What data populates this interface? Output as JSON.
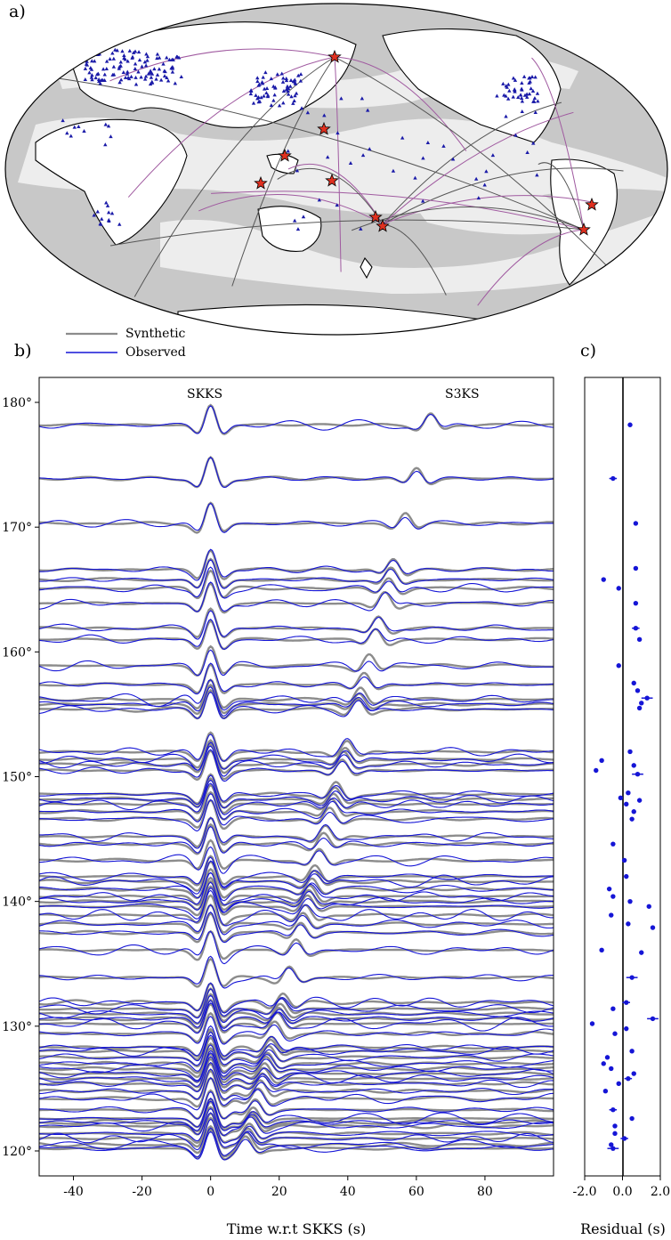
{
  "panels": {
    "a": "a)",
    "b": "b)",
    "c": "c)"
  },
  "legend": {
    "synthetic": "Synthetic",
    "observed": "Observed"
  },
  "colors": {
    "synthetic": "#8c8c8c",
    "observed": "#1515d6",
    "ray_synthetic": "#555555",
    "ray_observed": "#a05aa0",
    "event_star": "#e03020",
    "station": "#1a1aa8",
    "map_ocean_dark": "#c8c8c8",
    "map_ocean_light": "#ededed"
  },
  "map": {
    "description_icon": "globe-map-icon"
  },
  "chart_data": [
    {
      "type": "line",
      "name": "waveforms",
      "phase_labels": [
        "SKKS",
        "S3KS"
      ],
      "xlabel": "Time w.r.t SKKS (s)",
      "xlim": [
        -50,
        100
      ],
      "ylim": [
        118,
        182
      ],
      "xticks": [
        -40,
        -20,
        0,
        20,
        40,
        60,
        80
      ],
      "xtick_labels": [
        "-40",
        "-20",
        "0",
        "20",
        "40",
        "60",
        "80"
      ],
      "yticks": [
        120,
        130,
        140,
        150,
        160,
        170,
        180
      ],
      "ytick_labels": [
        "120°",
        "130°",
        "140°",
        "150°",
        "160°",
        "170°",
        "180°"
      ],
      "distances": [
        120.2,
        120.5,
        121.0,
        121.4,
        122.0,
        122.3,
        122.6,
        123.3,
        124.2,
        124.8,
        125.4,
        125.8,
        126.2,
        126.6,
        127.0,
        127.5,
        128.0,
        128.3,
        129.4,
        130.2,
        130.6,
        131.0,
        131.4,
        131.9,
        133.9,
        136.1,
        137.5,
        138.2,
        138.9,
        139.6,
        140.0,
        140.4,
        141.0,
        141.6,
        142.0,
        143.3,
        144.6,
        145.2,
        146.6,
        147.2,
        147.8,
        148.2,
        148.6,
        150.5,
        151.0,
        151.4,
        152.0,
        155.4,
        155.8,
        156.2,
        157.4,
        158.9,
        161.0,
        161.9,
        163.9,
        165.1,
        165.8,
        166.6,
        170.3,
        173.9,
        178.2
      ],
      "series": [
        {
          "name": "Synthetic",
          "color": "#8c8c8c"
        },
        {
          "name": "Observed",
          "color": "#1515d6"
        }
      ]
    },
    {
      "type": "scatter",
      "name": "residuals",
      "xlabel": "Residual (s)",
      "xlim": [
        -2.0,
        2.0
      ],
      "xticks": [
        -2.0,
        0.0,
        2.0
      ],
      "xtick_labels": [
        "-2.0",
        "0.0",
        "2.0"
      ],
      "points": [
        {
          "y": 178.2,
          "x": 0.4,
          "e": 0
        },
        {
          "y": 173.9,
          "x": -0.5,
          "e": 0.2
        },
        {
          "y": 170.3,
          "x": 0.7,
          "e": 0
        },
        {
          "y": 166.7,
          "x": 0.7,
          "e": 0.1
        },
        {
          "y": 165.8,
          "x": -1.0,
          "e": 0.1
        },
        {
          "y": 165.1,
          "x": -0.2,
          "e": 0
        },
        {
          "y": 163.9,
          "x": 0.7,
          "e": 0
        },
        {
          "y": 161.9,
          "x": 0.7,
          "e": 0.2
        },
        {
          "y": 161.0,
          "x": 0.9,
          "e": 0
        },
        {
          "y": 158.9,
          "x": -0.2,
          "e": 0
        },
        {
          "y": 157.5,
          "x": 0.6,
          "e": 0
        },
        {
          "y": 156.9,
          "x": 0.8,
          "e": 0
        },
        {
          "y": 156.3,
          "x": 1.3,
          "e": 0.3
        },
        {
          "y": 155.9,
          "x": 1.0,
          "e": 0.1
        },
        {
          "y": 155.5,
          "x": 0.9,
          "e": 0
        },
        {
          "y": 152.0,
          "x": 0.4,
          "e": 0
        },
        {
          "y": 151.3,
          "x": -1.1,
          "e": 0
        },
        {
          "y": 150.9,
          "x": 0.6,
          "e": 0
        },
        {
          "y": 150.5,
          "x": -1.4,
          "e": 0
        },
        {
          "y": 150.2,
          "x": 0.8,
          "e": 0.3
        },
        {
          "y": 148.7,
          "x": 0.3,
          "e": 0
        },
        {
          "y": 148.3,
          "x": -0.1,
          "e": 0.1
        },
        {
          "y": 148.1,
          "x": 0.9,
          "e": 0
        },
        {
          "y": 147.8,
          "x": 0.2,
          "e": 0
        },
        {
          "y": 147.2,
          "x": 0.6,
          "e": 0
        },
        {
          "y": 146.6,
          "x": 0.5,
          "e": 0
        },
        {
          "y": 144.6,
          "x": -0.5,
          "e": 0
        },
        {
          "y": 143.3,
          "x": 0.1,
          "e": 0
        },
        {
          "y": 142.0,
          "x": 0.2,
          "e": 0
        },
        {
          "y": 141.0,
          "x": -0.7,
          "e": 0.1
        },
        {
          "y": 140.4,
          "x": -0.5,
          "e": 0
        },
        {
          "y": 140.0,
          "x": 0.4,
          "e": 0.1
        },
        {
          "y": 139.6,
          "x": 1.4,
          "e": 0
        },
        {
          "y": 138.9,
          "x": -0.6,
          "e": 0
        },
        {
          "y": 138.2,
          "x": 0.3,
          "e": 0
        },
        {
          "y": 137.9,
          "x": 1.6,
          "e": 0.1
        },
        {
          "y": 136.1,
          "x": -1.1,
          "e": 0
        },
        {
          "y": 135.9,
          "x": 1.0,
          "e": 0
        },
        {
          "y": 133.9,
          "x": 0.5,
          "e": 0.3
        },
        {
          "y": 131.9,
          "x": 0.2,
          "e": 0.2
        },
        {
          "y": 131.4,
          "x": -0.5,
          "e": 0
        },
        {
          "y": 130.6,
          "x": 1.6,
          "e": 0.3
        },
        {
          "y": 130.2,
          "x": -1.6,
          "e": 0.1
        },
        {
          "y": 129.8,
          "x": 0.2,
          "e": 0
        },
        {
          "y": 129.4,
          "x": -0.4,
          "e": 0
        },
        {
          "y": 128.0,
          "x": 0.5,
          "e": 0
        },
        {
          "y": 127.5,
          "x": -0.8,
          "e": 0
        },
        {
          "y": 127.0,
          "x": -1.0,
          "e": 0.1
        },
        {
          "y": 126.6,
          "x": -0.6,
          "e": 0
        },
        {
          "y": 126.2,
          "x": 0.6,
          "e": 0
        },
        {
          "y": 125.8,
          "x": 0.3,
          "e": 0.2
        },
        {
          "y": 125.4,
          "x": -0.2,
          "e": 0
        },
        {
          "y": 124.8,
          "x": -0.9,
          "e": 0
        },
        {
          "y": 123.3,
          "x": -0.5,
          "e": 0.2
        },
        {
          "y": 122.6,
          "x": 0.5,
          "e": 0
        },
        {
          "y": 122.0,
          "x": -0.4,
          "e": 0.1
        },
        {
          "y": 121.4,
          "x": -0.4,
          "e": 0
        },
        {
          "y": 121.0,
          "x": 0.1,
          "e": 0.2
        },
        {
          "y": 120.5,
          "x": -0.6,
          "e": 0
        },
        {
          "y": 120.2,
          "x": -0.5,
          "e": 0.3
        }
      ]
    }
  ]
}
